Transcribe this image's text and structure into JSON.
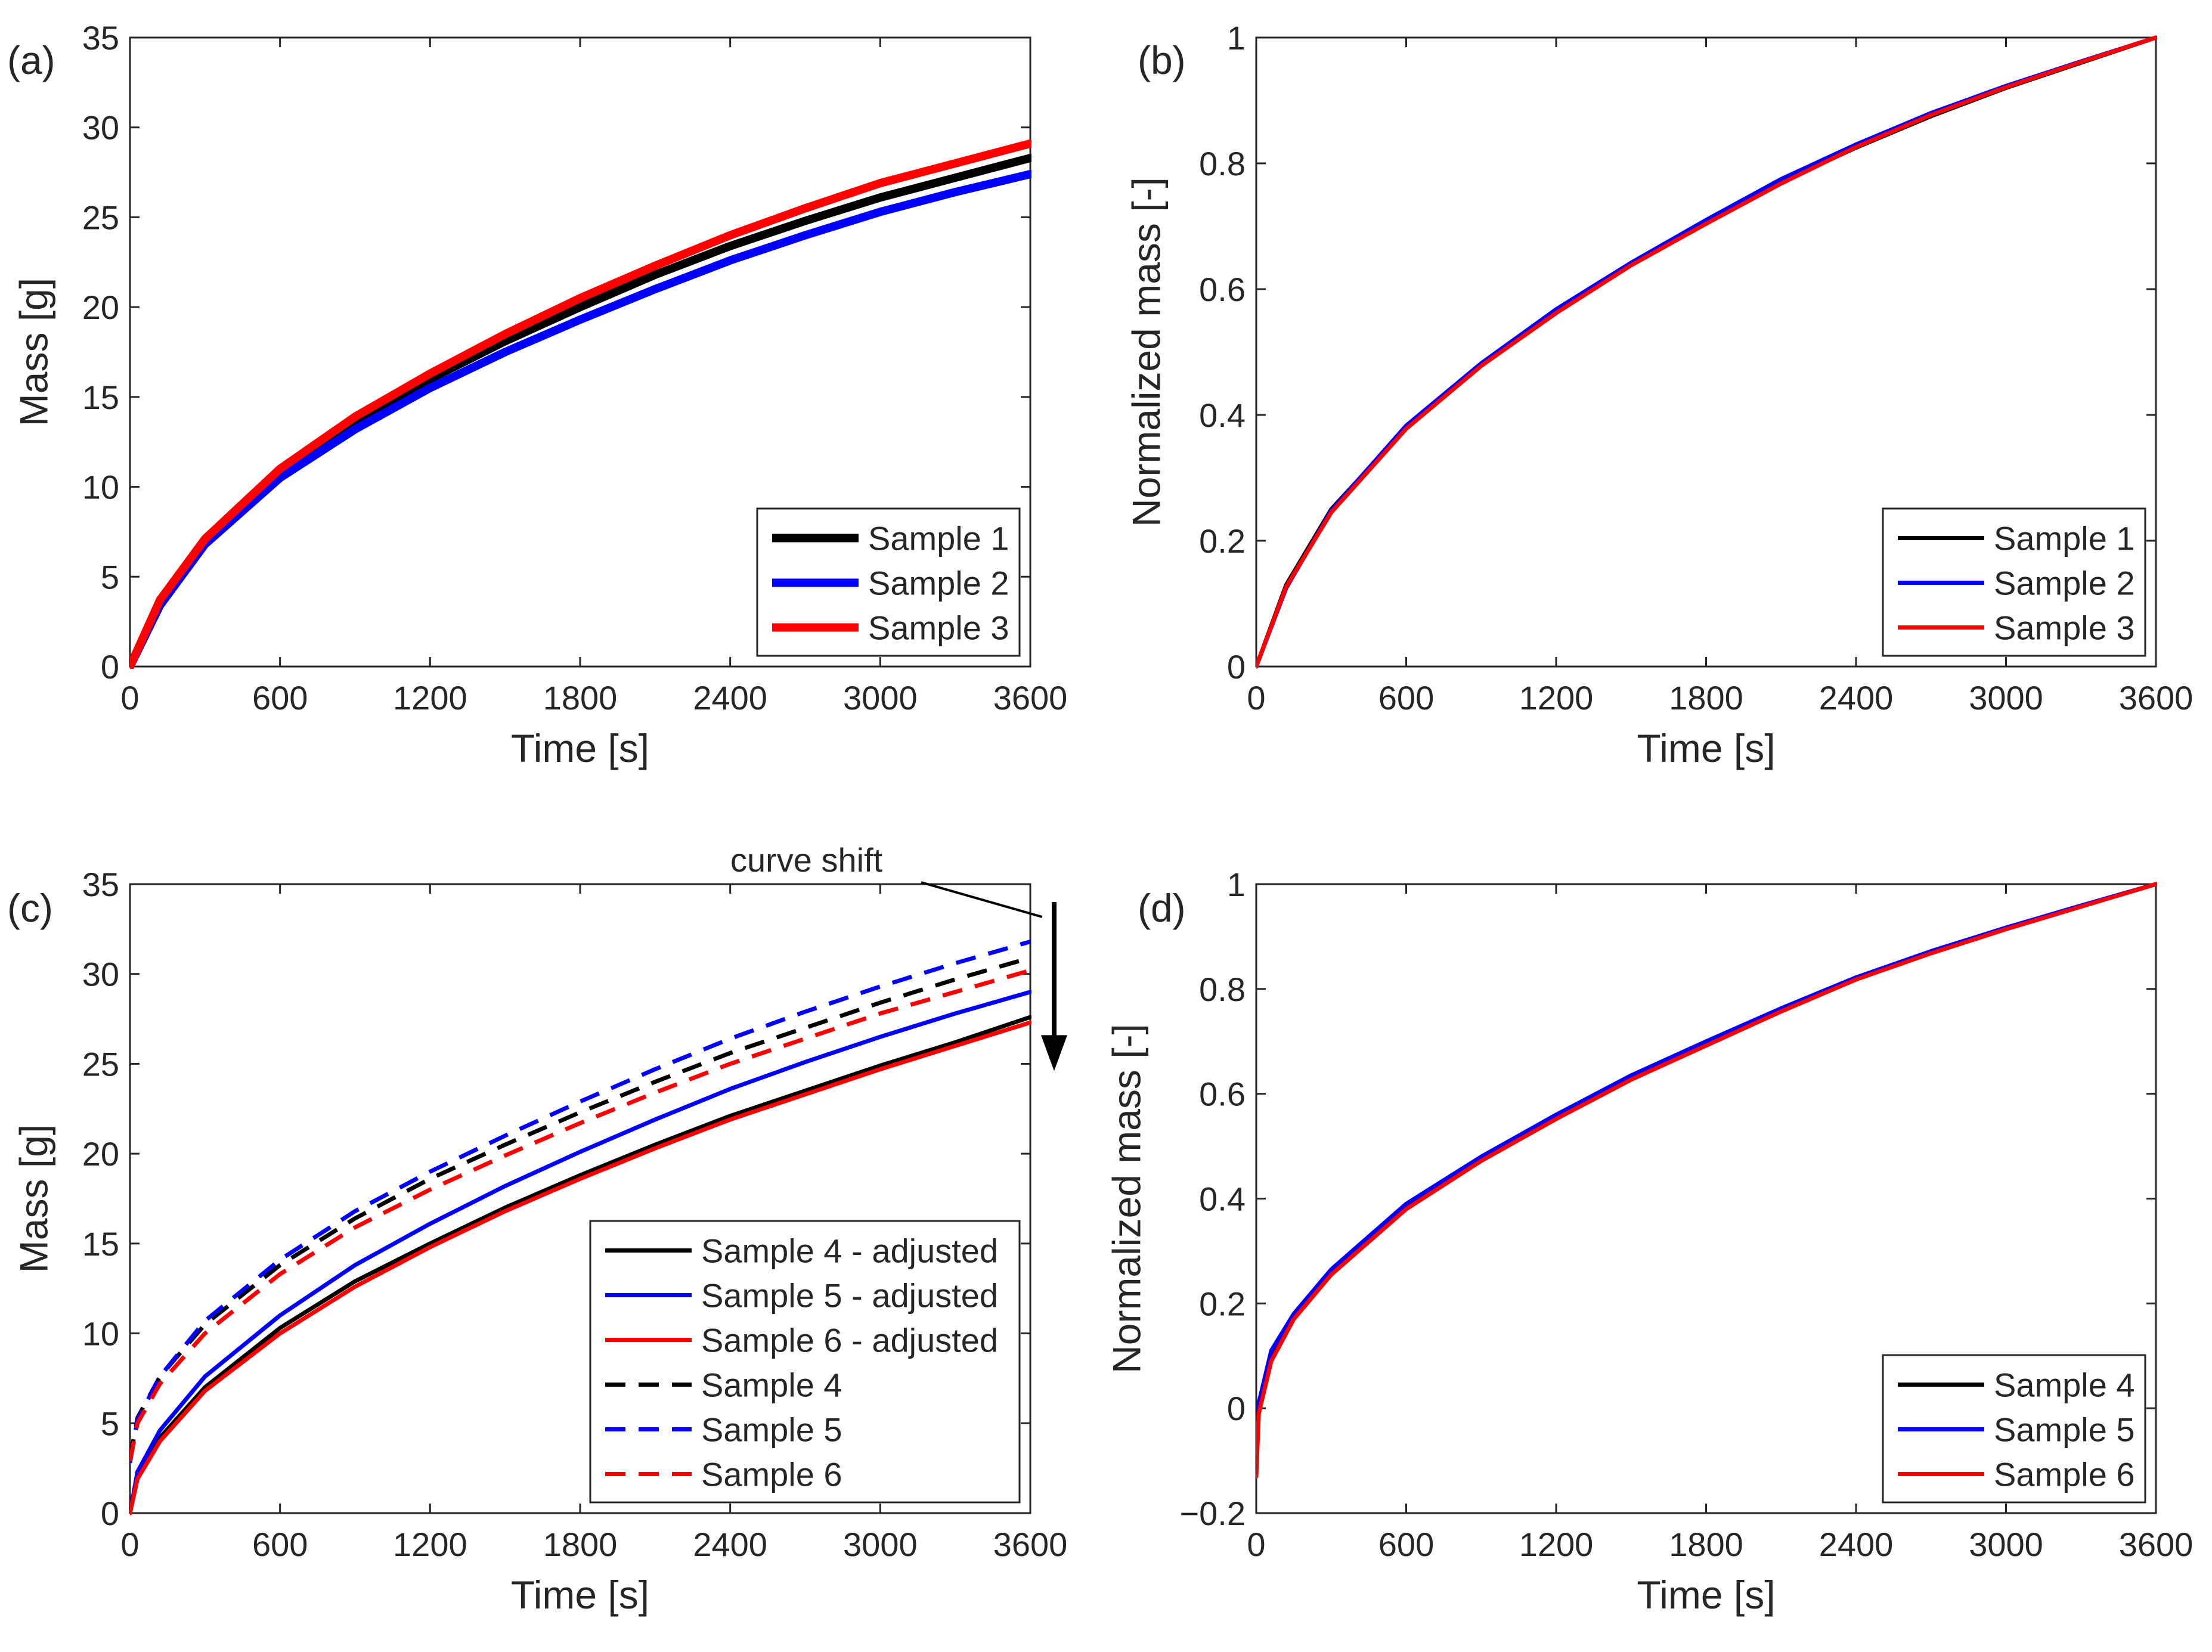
{
  "chart_data": [
    {
      "panel": "a",
      "panel_label": "(a)",
      "type": "line",
      "xlabel": "Time [s]",
      "ylabel": "Mass [g]",
      "xlim": [
        0,
        3600
      ],
      "ylim": [
        0,
        35
      ],
      "xticks": [
        0,
        600,
        1200,
        1800,
        2400,
        3000,
        3600
      ],
      "yticks": [
        0,
        5,
        10,
        15,
        20,
        25,
        30,
        35
      ],
      "legend_position": "lower-right",
      "series": [
        {
          "name": "Sample 1",
          "color": "#000000",
          "style": "solid",
          "width": "thick",
          "x": [
            0,
            120,
            300,
            600,
            900,
            1200,
            1500,
            1800,
            2100,
            2400,
            2700,
            3000,
            3300,
            3600
          ],
          "y": [
            0,
            3.6,
            7.0,
            10.8,
            13.6,
            16.0,
            18.1,
            20.0,
            21.8,
            23.4,
            24.8,
            26.1,
            27.2,
            28.3
          ]
        },
        {
          "name": "Sample 2",
          "color": "#0000ff",
          "style": "solid",
          "width": "thick",
          "x": [
            0,
            120,
            300,
            600,
            900,
            1200,
            1500,
            1800,
            2100,
            2400,
            2700,
            3000,
            3300,
            3600
          ],
          "y": [
            0,
            3.4,
            6.8,
            10.5,
            13.2,
            15.5,
            17.5,
            19.3,
            21.0,
            22.6,
            24.0,
            25.3,
            26.4,
            27.4
          ]
        },
        {
          "name": "Sample 3",
          "color": "#ff0000",
          "style": "solid",
          "width": "thick",
          "x": [
            0,
            120,
            300,
            600,
            900,
            1200,
            1500,
            1800,
            2100,
            2400,
            2700,
            3000,
            3300,
            3600
          ],
          "y": [
            0,
            3.7,
            7.1,
            11.0,
            13.9,
            16.3,
            18.5,
            20.5,
            22.3,
            24.0,
            25.5,
            26.9,
            28.0,
            29.1
          ]
        }
      ]
    },
    {
      "panel": "b",
      "panel_label": "(b)",
      "type": "line",
      "xlabel": "Time [s]",
      "ylabel": "Normalized mass [-]",
      "xlim": [
        0,
        3600
      ],
      "ylim": [
        0,
        1
      ],
      "xticks": [
        0,
        600,
        1200,
        1800,
        2400,
        3000,
        3600
      ],
      "yticks": [
        0,
        0.2,
        0.4,
        0.6,
        0.8,
        1
      ],
      "legend_position": "lower-right",
      "series": [
        {
          "name": "Sample 1",
          "color": "#000000",
          "style": "solid",
          "width": "thin",
          "x": [
            0,
            120,
            300,
            600,
            900,
            1200,
            1500,
            1800,
            2100,
            2400,
            2700,
            3000,
            3300,
            3600
          ],
          "y": [
            0,
            0.13,
            0.25,
            0.38,
            0.48,
            0.565,
            0.64,
            0.705,
            0.77,
            0.825,
            0.875,
            0.92,
            0.96,
            1.0
          ]
        },
        {
          "name": "Sample 2",
          "color": "#0000ff",
          "style": "solid",
          "width": "thin",
          "x": [
            0,
            120,
            300,
            600,
            900,
            1200,
            1500,
            1800,
            2100,
            2400,
            2700,
            3000,
            3300,
            3600
          ],
          "y": [
            0,
            0.125,
            0.248,
            0.383,
            0.482,
            0.568,
            0.642,
            0.71,
            0.775,
            0.83,
            0.88,
            0.923,
            0.962,
            1.0
          ]
        },
        {
          "name": "Sample 3",
          "color": "#ff0000",
          "style": "solid",
          "width": "thin",
          "x": [
            0,
            120,
            300,
            600,
            900,
            1200,
            1500,
            1800,
            2100,
            2400,
            2700,
            3000,
            3300,
            3600
          ],
          "y": [
            0,
            0.127,
            0.245,
            0.378,
            0.478,
            0.562,
            0.638,
            0.704,
            0.768,
            0.826,
            0.877,
            0.921,
            0.961,
            1.0
          ]
        }
      ]
    },
    {
      "panel": "c",
      "panel_label": "(c)",
      "type": "line",
      "xlabel": "Time [s]",
      "ylabel": "Mass [g]",
      "xlim": [
        0,
        3600
      ],
      "ylim": [
        0,
        35
      ],
      "xticks": [
        0,
        600,
        1200,
        1800,
        2400,
        3000,
        3600
      ],
      "yticks": [
        0,
        5,
        10,
        15,
        20,
        25,
        30,
        35
      ],
      "legend_position": "lower-right",
      "annotation": {
        "text": "curve shift",
        "arrow_from_y": 34.0,
        "arrow_to_y": 25.0
      },
      "series": [
        {
          "name": "Sample 4 - adjusted",
          "color": "#000000",
          "style": "solid",
          "x": [
            0,
            30,
            120,
            300,
            600,
            900,
            1200,
            1500,
            1800,
            2100,
            2400,
            2700,
            3000,
            3300,
            3600
          ],
          "y": [
            0,
            2.0,
            4.2,
            7.0,
            10.3,
            12.9,
            15.0,
            17.0,
            18.8,
            20.5,
            22.1,
            23.5,
            24.9,
            26.2,
            27.6
          ]
        },
        {
          "name": "Sample 5 - adjusted",
          "color": "#0000ff",
          "style": "solid",
          "x": [
            0,
            30,
            120,
            300,
            600,
            900,
            1200,
            1500,
            1800,
            2100,
            2400,
            2700,
            3000,
            3300,
            3600
          ],
          "y": [
            0,
            2.3,
            4.6,
            7.6,
            11.0,
            13.8,
            16.1,
            18.2,
            20.1,
            21.9,
            23.6,
            25.1,
            26.5,
            27.8,
            29.0
          ]
        },
        {
          "name": "Sample 6 - adjusted",
          "color": "#ff0000",
          "style": "solid",
          "x": [
            0,
            30,
            120,
            300,
            600,
            900,
            1200,
            1500,
            1800,
            2100,
            2400,
            2700,
            3000,
            3300,
            3600
          ],
          "y": [
            0,
            1.9,
            4.0,
            6.8,
            10.0,
            12.6,
            14.8,
            16.8,
            18.6,
            20.3,
            21.9,
            23.3,
            24.7,
            26.0,
            27.3
          ]
        },
        {
          "name": "Sample 4",
          "color": "#000000",
          "style": "dashed",
          "x": [
            0,
            30,
            120,
            300,
            600,
            900,
            1200,
            1500,
            1800,
            2100,
            2400,
            2700,
            3000,
            3300,
            3600
          ],
          "y": [
            3.0,
            5.3,
            7.6,
            10.5,
            13.8,
            16.4,
            18.6,
            20.5,
            22.3,
            24.0,
            25.6,
            27.0,
            28.4,
            29.7,
            30.9
          ]
        },
        {
          "name": "Sample 5",
          "color": "#0000ff",
          "style": "dashed",
          "x": [
            0,
            30,
            120,
            300,
            600,
            900,
            1200,
            1500,
            1800,
            2100,
            2400,
            2700,
            3000,
            3300,
            3600
          ],
          "y": [
            2.8,
            5.2,
            7.6,
            10.7,
            14.1,
            16.8,
            19.0,
            21.0,
            22.9,
            24.7,
            26.4,
            27.9,
            29.3,
            30.6,
            31.8
          ]
        },
        {
          "name": "Sample 6",
          "color": "#ff0000",
          "style": "dashed",
          "x": [
            0,
            30,
            120,
            300,
            600,
            900,
            1200,
            1500,
            1800,
            2100,
            2400,
            2700,
            3000,
            3300,
            3600
          ],
          "y": [
            2.9,
            5.0,
            7.2,
            10.0,
            13.3,
            15.9,
            18.0,
            19.9,
            21.7,
            23.4,
            25.0,
            26.4,
            27.8,
            29.0,
            30.2
          ]
        }
      ]
    },
    {
      "panel": "d",
      "panel_label": "(d)",
      "type": "line",
      "xlabel": "Time [s]",
      "ylabel": "Normalized mass [-]",
      "xlim": [
        0,
        3600
      ],
      "ylim": [
        -0.2,
        1
      ],
      "xticks": [
        0,
        600,
        1200,
        1800,
        2400,
        3000,
        3600
      ],
      "yticks": [
        -0.2,
        0,
        0.2,
        0.4,
        0.6,
        0.8,
        1
      ],
      "legend_position": "lower-right",
      "series": [
        {
          "name": "Sample 4",
          "color": "#000000",
          "style": "solid",
          "x": [
            0,
            10,
            60,
            150,
            300,
            600,
            900,
            1200,
            1500,
            1800,
            2100,
            2400,
            2700,
            3000,
            3300,
            3600
          ],
          "y": [
            -0.12,
            0.0,
            0.1,
            0.175,
            0.26,
            0.385,
            0.475,
            0.555,
            0.63,
            0.695,
            0.76,
            0.82,
            0.87,
            0.915,
            0.958,
            1.0
          ]
        },
        {
          "name": "Sample 5",
          "color": "#0000ff",
          "style": "solid",
          "x": [
            0,
            10,
            60,
            150,
            300,
            600,
            900,
            1200,
            1500,
            1800,
            2100,
            2400,
            2700,
            3000,
            3300,
            3600
          ],
          "y": [
            -0.1,
            0.01,
            0.11,
            0.18,
            0.265,
            0.39,
            0.48,
            0.56,
            0.635,
            0.7,
            0.763,
            0.822,
            0.872,
            0.917,
            0.959,
            1.0
          ]
        },
        {
          "name": "Sample 6",
          "color": "#ff0000",
          "style": "solid",
          "x": [
            0,
            10,
            60,
            150,
            300,
            600,
            900,
            1200,
            1500,
            1800,
            2100,
            2400,
            2700,
            3000,
            3300,
            3600
          ],
          "y": [
            -0.13,
            -0.01,
            0.09,
            0.17,
            0.255,
            0.38,
            0.472,
            0.552,
            0.627,
            0.692,
            0.757,
            0.818,
            0.868,
            0.914,
            0.957,
            1.0
          ]
        }
      ]
    }
  ]
}
